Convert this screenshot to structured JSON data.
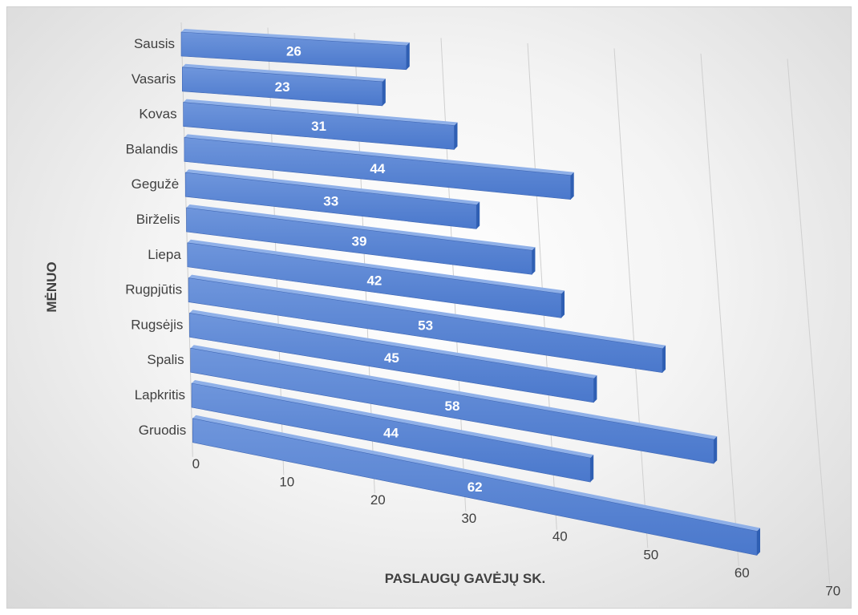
{
  "chart_data": {
    "type": "bar",
    "orientation": "horizontal",
    "categories": [
      "Sausis",
      "Vasaris",
      "Kovas",
      "Balandis",
      "Gegužė",
      "Birželis",
      "Liepa",
      "Rugpjūtis",
      "Rugsėjis",
      "Spalis",
      "Lapkritis",
      "Gruodis"
    ],
    "values": [
      26,
      23,
      31,
      44,
      33,
      39,
      42,
      53,
      45,
      58,
      44,
      62
    ],
    "xlim": [
      0,
      70
    ],
    "xticks": [
      0,
      10,
      20,
      30,
      40,
      50,
      60,
      70
    ],
    "xlabel": "PASLAUGŲ GAVĖJŲ SK.",
    "ylabel": "MĖNUO",
    "data_labels": true,
    "grid": true,
    "legend": "none",
    "bar_color": "#4472C4"
  }
}
